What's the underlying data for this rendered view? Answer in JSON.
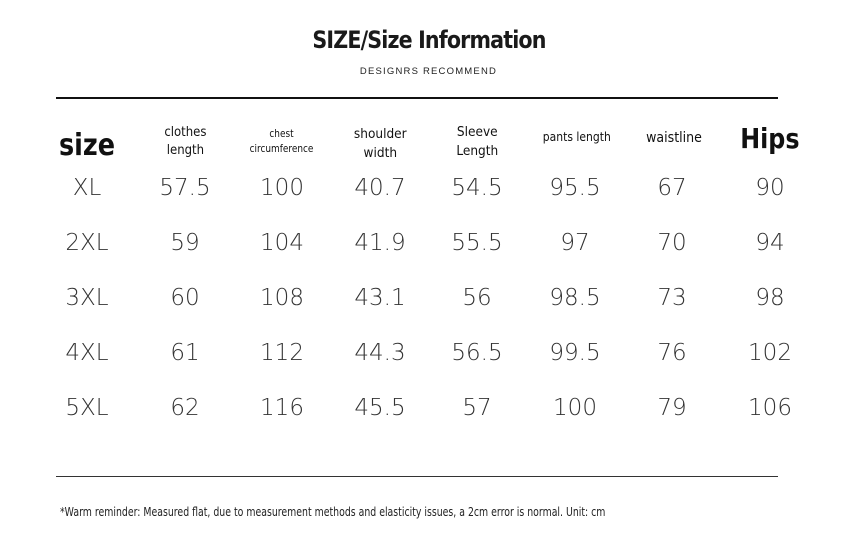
{
  "header": {
    "title": "SIZE/Size Information",
    "subtitle": "DESIGNRS RECOMMEND"
  },
  "table": {
    "columns": [
      "size",
      "clothes\nlength",
      "chest\ncircumference",
      "shoulder\nwidth",
      "Sleeve\nLength",
      "pants length",
      "waistline",
      "Hips"
    ],
    "rows": [
      [
        "XL",
        "57.5",
        "100",
        "40.7",
        "54.5",
        "95.5",
        "67",
        "90"
      ],
      [
        "2XL",
        "59",
        "104",
        "41.9",
        "55.5",
        "97",
        "70",
        "94"
      ],
      [
        "3XL",
        "60",
        "108",
        "43.1",
        "56",
        "98.5",
        "73",
        "98"
      ],
      [
        "4XL",
        "61",
        "112",
        "44.3",
        "56.5",
        "99.5",
        "76",
        "102"
      ],
      [
        "5XL",
        "62",
        "116",
        "45.5",
        "57",
        "100",
        "79",
        "106"
      ]
    ]
  },
  "footer": {
    "note": "*Warm reminder: Measured flat, due to measurement methods and elasticity issues, a 2cm error is normal. Unit: cm"
  }
}
